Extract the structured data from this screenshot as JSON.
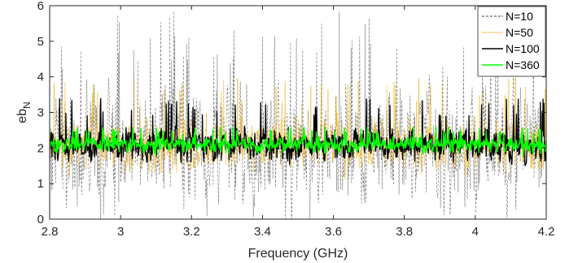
{
  "chart_data": {
    "type": "line",
    "xlabel": "Frequency (GHz)",
    "ylabel": {
      "main": "eb",
      "sub": "N"
    },
    "xlim": [
      2.8,
      4.2
    ],
    "ylim": [
      0,
      6
    ],
    "xticks": [
      2.8,
      3,
      3.2,
      3.4,
      3.6,
      3.8,
      4,
      4.2
    ],
    "xtick_labels": [
      "2.8",
      "3",
      "3.2",
      "3.4",
      "3.6",
      "3.8",
      "4",
      "4.2"
    ],
    "yticks": [
      0,
      1,
      2,
      3,
      4,
      5,
      6
    ],
    "ytick_labels": [
      "0",
      "1",
      "2",
      "3",
      "4",
      "5",
      "6"
    ],
    "grid": false,
    "legend_position": "top-right",
    "series": [
      {
        "name": "N=10",
        "color": "#808080",
        "style": "dashed",
        "mean": 2.1,
        "typical_min": 0.7,
        "typical_max": 5.5,
        "peak_max": 6.0
      },
      {
        "name": "N=50",
        "color": "#EDB120",
        "style": "dotted",
        "mean": 2.1,
        "typical_min": 1.3,
        "typical_max": 3.3,
        "peak_max": 4.0
      },
      {
        "name": "N=100",
        "color": "#000000",
        "style": "solid",
        "mean": 2.1,
        "typical_min": 1.6,
        "typical_max": 2.8,
        "peak_max": 3.4
      },
      {
        "name": "N=360",
        "color": "#00FF00",
        "style": "solid",
        "mean": 2.1,
        "typical_min": 1.85,
        "typical_max": 2.4,
        "peak_max": 2.6
      }
    ]
  }
}
